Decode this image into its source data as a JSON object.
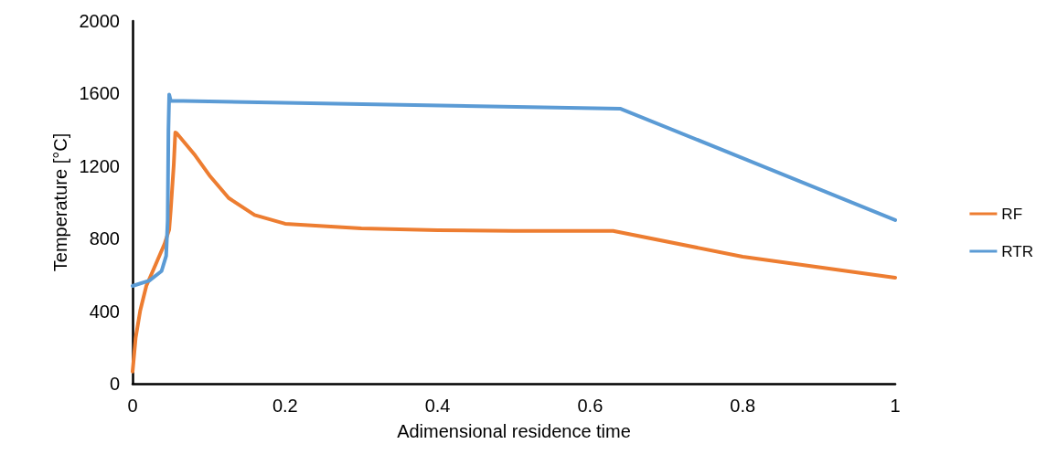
{
  "chart_data": {
    "type": "line",
    "xlabel": "Adimensional residence time",
    "ylabel": "Temperature [°C]",
    "xlim": [
      0,
      1
    ],
    "xticks": [
      0,
      0.2,
      0.4,
      0.6,
      0.8,
      1
    ],
    "ylim": [
      0,
      2000
    ],
    "yticks": [
      0,
      400,
      800,
      1200,
      1600,
      2000
    ],
    "grid": false,
    "legend": "right",
    "marker": "none",
    "line_style": "solid",
    "series": [
      {
        "name": "RF",
        "color": "#ed7d31",
        "x": [
          0,
          0.004,
          0.01,
          0.018,
          0.03,
          0.042,
          0.048,
          0.05,
          0.054,
          0.056,
          0.058,
          0.07,
          0.082,
          0.102,
          0.126,
          0.16,
          0.2,
          0.3,
          0.4,
          0.5,
          0.63,
          0.8,
          1
        ],
        "values": [
          67,
          252,
          403,
          539,
          655,
          772,
          850,
          957,
          1209,
          1385,
          1380,
          1320,
          1259,
          1142,
          1024,
          930,
          882,
          856,
          846,
          843,
          843,
          700,
          584
        ]
      },
      {
        "name": "RTR",
        "color": "#5b9bd5",
        "x": [
          0,
          0.022,
          0.038,
          0.044,
          0.046,
          0.047,
          0.048,
          0.05,
          0.64,
          0.8,
          1
        ],
        "values": [
          539,
          569,
          621,
          705,
          900,
          1400,
          1595,
          1560,
          1516,
          1244,
          902
        ]
      }
    ]
  }
}
